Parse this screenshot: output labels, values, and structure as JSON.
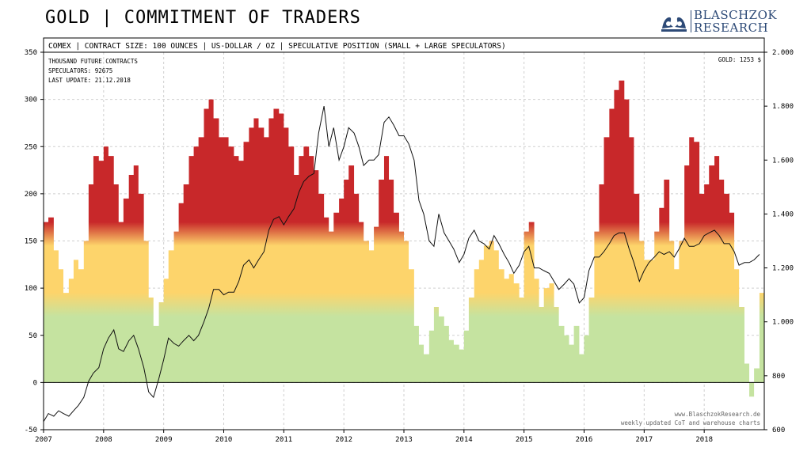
{
  "header": {
    "title": "GOLD | COMMITMENT OF TRADERS",
    "logo_line1": "BLASCHZOK",
    "logo_line2": "RESEARCH"
  },
  "chart_data": {
    "type": "area",
    "subtitle": "COMEX | CONTRACT SIZE: 100 OUNCES | US-DOLLAR / OZ | SPECULATIVE POSITION (SMALL + LARGE SPECULATORS)",
    "info_lines": [
      "THOUSAND  FUTURE  CONTRACTS",
      "SPECULATORS:  92675",
      "LAST UPDATE: 21.12.2018"
    ],
    "gold_label": "GOLD: 1253 $",
    "footer_lines": [
      "www.BlaschzokResearch.de",
      "weekly updated CoT and warehouse charts"
    ],
    "x_ticks": [
      "2007",
      "2008",
      "2009",
      "2010",
      "2011",
      "2012",
      "2013",
      "2014",
      "2015",
      "2016",
      "2017",
      "2018"
    ],
    "xlim": [
      2007.0,
      2019.0
    ],
    "ylim_left": [
      -50,
      350
    ],
    "ylim_right": [
      600,
      2000
    ],
    "y_ticks_left": [
      "-50",
      "0",
      "50",
      "100",
      "150",
      "200",
      "250",
      "300",
      "350"
    ],
    "y_ticks_right": [
      "600",
      "800",
      "1.000",
      "1.200",
      "1.400",
      "1.600",
      "1.800",
      "2.000"
    ],
    "color_bands": [
      {
        "from": 0,
        "to": 80,
        "color": "#c5e3a0"
      },
      {
        "from": 80,
        "to": 155,
        "color": "#fdd46b"
      },
      {
        "from": 155,
        "to": 350,
        "color": "#c8282a"
      }
    ],
    "series": [
      {
        "axis": "left",
        "kind": "area",
        "x": [
          2007.0,
          2007.08,
          2007.17,
          2007.25,
          2007.33,
          2007.42,
          2007.5,
          2007.58,
          2007.67,
          2007.75,
          2007.83,
          2007.92,
          2008.0,
          2008.08,
          2008.17,
          2008.25,
          2008.33,
          2008.42,
          2008.5,
          2008.58,
          2008.67,
          2008.75,
          2008.83,
          2008.92,
          2009.0,
          2009.08,
          2009.17,
          2009.25,
          2009.33,
          2009.42,
          2009.5,
          2009.58,
          2009.67,
          2009.75,
          2009.83,
          2009.92,
          2010.0,
          2010.08,
          2010.17,
          2010.25,
          2010.33,
          2010.42,
          2010.5,
          2010.58,
          2010.67,
          2010.75,
          2010.83,
          2010.92,
          2011.0,
          2011.08,
          2011.17,
          2011.25,
          2011.33,
          2011.42,
          2011.5,
          2011.58,
          2011.67,
          2011.75,
          2011.83,
          2011.92,
          2012.0,
          2012.08,
          2012.17,
          2012.25,
          2012.33,
          2012.42,
          2012.5,
          2012.58,
          2012.67,
          2012.75,
          2012.83,
          2012.92,
          2013.0,
          2013.08,
          2013.17,
          2013.25,
          2013.33,
          2013.42,
          2013.5,
          2013.58,
          2013.67,
          2013.75,
          2013.83,
          2013.92,
          2014.0,
          2014.08,
          2014.17,
          2014.25,
          2014.33,
          2014.42,
          2014.5,
          2014.58,
          2014.67,
          2014.75,
          2014.83,
          2014.92,
          2015.0,
          2015.08,
          2015.17,
          2015.25,
          2015.33,
          2015.42,
          2015.5,
          2015.58,
          2015.67,
          2015.75,
          2015.83,
          2015.92,
          2016.0,
          2016.08,
          2016.17,
          2016.25,
          2016.33,
          2016.42,
          2016.5,
          2016.58,
          2016.67,
          2016.75,
          2016.83,
          2016.92,
          2017.0,
          2017.08,
          2017.17,
          2017.25,
          2017.33,
          2017.42,
          2017.5,
          2017.58,
          2017.67,
          2017.75,
          2017.83,
          2017.92,
          2018.0,
          2018.08,
          2018.17,
          2018.25,
          2018.33,
          2018.42,
          2018.5,
          2018.58,
          2018.67,
          2018.75,
          2018.83,
          2018.92
        ],
        "values": [
          170,
          175,
          140,
          120,
          95,
          110,
          130,
          120,
          150,
          210,
          240,
          235,
          250,
          240,
          210,
          170,
          195,
          220,
          230,
          200,
          150,
          90,
          60,
          85,
          110,
          140,
          160,
          190,
          210,
          240,
          250,
          260,
          290,
          300,
          280,
          260,
          260,
          250,
          240,
          235,
          255,
          270,
          280,
          270,
          260,
          280,
          290,
          285,
          270,
          250,
          220,
          240,
          250,
          240,
          225,
          200,
          175,
          160,
          180,
          195,
          215,
          230,
          200,
          170,
          150,
          140,
          165,
          215,
          240,
          215,
          180,
          160,
          150,
          120,
          60,
          40,
          30,
          55,
          80,
          70,
          60,
          45,
          40,
          35,
          55,
          90,
          120,
          130,
          145,
          150,
          140,
          120,
          110,
          115,
          105,
          90,
          160,
          170,
          110,
          80,
          100,
          105,
          80,
          60,
          50,
          40,
          60,
          30,
          50,
          90,
          160,
          210,
          260,
          290,
          310,
          320,
          300,
          260,
          200,
          150,
          130,
          130,
          160,
          185,
          215,
          150,
          120,
          150,
          230,
          260,
          255,
          200,
          210,
          230,
          240,
          215,
          200,
          180,
          120,
          80,
          20,
          -15,
          15,
          95
        ]
      },
      {
        "axis": "right",
        "kind": "line",
        "x": [
          2007.0,
          2007.08,
          2007.17,
          2007.25,
          2007.33,
          2007.42,
          2007.5,
          2007.58,
          2007.67,
          2007.75,
          2007.83,
          2007.92,
          2008.0,
          2008.08,
          2008.17,
          2008.25,
          2008.33,
          2008.42,
          2008.5,
          2008.58,
          2008.67,
          2008.75,
          2008.83,
          2008.92,
          2009.0,
          2009.08,
          2009.17,
          2009.25,
          2009.33,
          2009.42,
          2009.5,
          2009.58,
          2009.67,
          2009.75,
          2009.83,
          2009.92,
          2010.0,
          2010.08,
          2010.17,
          2010.25,
          2010.33,
          2010.42,
          2010.5,
          2010.58,
          2010.67,
          2010.75,
          2010.83,
          2010.92,
          2011.0,
          2011.08,
          2011.17,
          2011.25,
          2011.33,
          2011.42,
          2011.5,
          2011.58,
          2011.67,
          2011.75,
          2011.83,
          2011.92,
          2012.0,
          2012.08,
          2012.17,
          2012.25,
          2012.33,
          2012.42,
          2012.5,
          2012.58,
          2012.67,
          2012.75,
          2012.83,
          2012.92,
          2013.0,
          2013.08,
          2013.17,
          2013.25,
          2013.33,
          2013.42,
          2013.5,
          2013.58,
          2013.67,
          2013.75,
          2013.83,
          2013.92,
          2014.0,
          2014.08,
          2014.17,
          2014.25,
          2014.33,
          2014.42,
          2014.5,
          2014.58,
          2014.67,
          2014.75,
          2014.83,
          2014.92,
          2015.0,
          2015.08,
          2015.17,
          2015.25,
          2015.33,
          2015.42,
          2015.5,
          2015.58,
          2015.67,
          2015.75,
          2015.83,
          2015.92,
          2016.0,
          2016.08,
          2016.17,
          2016.25,
          2016.33,
          2016.42,
          2016.5,
          2016.58,
          2016.67,
          2016.75,
          2016.83,
          2016.92,
          2017.0,
          2017.08,
          2017.17,
          2017.25,
          2017.33,
          2017.42,
          2017.5,
          2017.58,
          2017.67,
          2017.75,
          2017.83,
          2017.92,
          2018.0,
          2018.08,
          2018.17,
          2018.25,
          2018.33,
          2018.42,
          2018.5,
          2018.58,
          2018.67,
          2018.75,
          2018.83,
          2018.92
        ],
        "values": [
          630,
          660,
          650,
          670,
          660,
          650,
          670,
          690,
          720,
          780,
          810,
          830,
          900,
          940,
          970,
          900,
          890,
          930,
          950,
          900,
          830,
          740,
          720,
          790,
          860,
          940,
          920,
          910,
          930,
          950,
          930,
          950,
          1000,
          1050,
          1120,
          1120,
          1100,
          1110,
          1110,
          1150,
          1210,
          1230,
          1200,
          1230,
          1260,
          1340,
          1380,
          1390,
          1360,
          1390,
          1420,
          1480,
          1520,
          1540,
          1550,
          1700,
          1800,
          1650,
          1720,
          1600,
          1650,
          1720,
          1700,
          1650,
          1580,
          1600,
          1600,
          1620,
          1740,
          1760,
          1730,
          1690,
          1690,
          1660,
          1600,
          1450,
          1400,
          1300,
          1280,
          1400,
          1330,
          1300,
          1270,
          1220,
          1250,
          1310,
          1340,
          1300,
          1290,
          1270,
          1320,
          1290,
          1250,
          1220,
          1180,
          1210,
          1260,
          1280,
          1200,
          1200,
          1190,
          1180,
          1150,
          1120,
          1140,
          1160,
          1140,
          1070,
          1090,
          1190,
          1240,
          1240,
          1260,
          1290,
          1320,
          1330,
          1330,
          1270,
          1220,
          1150,
          1190,
          1220,
          1240,
          1260,
          1250,
          1260,
          1240,
          1270,
          1310,
          1280,
          1280,
          1290,
          1320,
          1330,
          1340,
          1320,
          1290,
          1290,
          1260,
          1210,
          1220,
          1220,
          1230,
          1250
        ]
      }
    ]
  }
}
